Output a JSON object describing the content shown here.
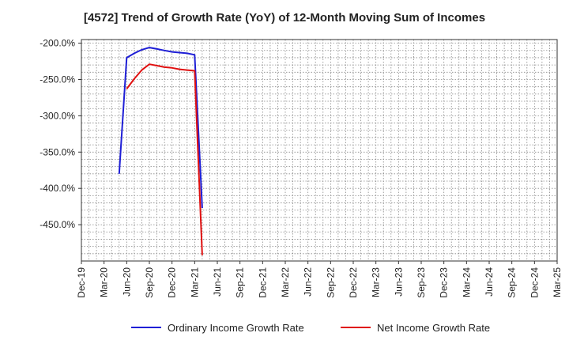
{
  "chart_data": {
    "type": "line",
    "title": "[4572]  Trend of Growth Rate (YoY) of 12-Month Moving Sum of Incomes",
    "xlabel": "",
    "ylabel": "",
    "x_tick_labels": [
      "Dec-19",
      "Mar-20",
      "Jun-20",
      "Sep-20",
      "Dec-20",
      "Mar-21",
      "Jun-21",
      "Sep-21",
      "Dec-21",
      "Mar-22",
      "Jun-22",
      "Sep-22",
      "Dec-22",
      "Mar-23",
      "Jun-23",
      "Sep-23",
      "Dec-23",
      "Mar-24",
      "Jun-24",
      "Sep-24",
      "Dec-24",
      "Mar-25"
    ],
    "y_ticks": [
      -200,
      -250,
      -300,
      -350,
      -400,
      -450
    ],
    "y_tick_labels": [
      "-200.0%",
      "-250.0%",
      "-300.0%",
      "-350.0%",
      "-400.0%",
      "-450.0%"
    ],
    "ylim": [
      -500,
      -195
    ],
    "x_range_months": [
      "2019-12",
      "2025-03"
    ],
    "grid": true,
    "legend_position": "bottom",
    "series": [
      {
        "name": "Ordinary Income Growth Rate",
        "color": "#1f1fd6",
        "x": [
          "2020-05",
          "2020-06",
          "2020-07",
          "2020-08",
          "2020-09",
          "2020-10",
          "2020-11",
          "2020-12",
          "2021-01",
          "2021-02",
          "2021-03",
          "2021-04"
        ],
        "values": [
          -380,
          -220,
          -214,
          -209,
          -206,
          -208,
          -210,
          -212,
          -213,
          -214,
          -216,
          -427
        ]
      },
      {
        "name": "Net Income Growth Rate",
        "color": "#e01010",
        "x": [
          "2020-06",
          "2020-07",
          "2020-08",
          "2020-09",
          "2020-10",
          "2020-11",
          "2020-12",
          "2021-01",
          "2021-02",
          "2021-03",
          "2021-04"
        ],
        "values": [
          -263,
          -249,
          -237,
          -229,
          -231,
          -233,
          -234,
          -236,
          -237,
          -238,
          -492
        ]
      }
    ]
  }
}
